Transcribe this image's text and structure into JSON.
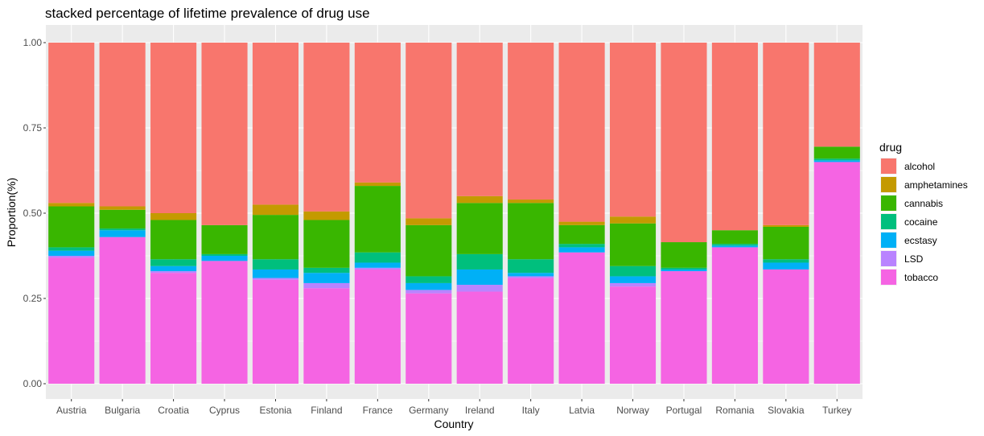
{
  "chart_data": {
    "type": "bar",
    "stacked": true,
    "title": "stacked percentage of lifetime prevalence of drug use",
    "xlabel": "Country",
    "ylabel": "Proportion(%)",
    "ylim": [
      0,
      1
    ],
    "yticks": [
      "0.00",
      "0.25",
      "0.50",
      "0.75",
      "1.00"
    ],
    "ytick_values": [
      0,
      0.25,
      0.5,
      0.75,
      1.0
    ],
    "grid": true,
    "legend_title": "drug",
    "legend_position": "right",
    "categories": [
      "Austria",
      "Bulgaria",
      "Croatia",
      "Cyprus",
      "Estonia",
      "Finland",
      "France",
      "Germany",
      "Ireland",
      "Italy",
      "Latvia",
      "Norway",
      "Portugal",
      "Romania",
      "Slovakia",
      "Turkey"
    ],
    "series": [
      {
        "name": "tobacco",
        "color": "#F564E3",
        "values": [
          0.37,
          0.43,
          0.325,
          0.36,
          0.305,
          0.28,
          0.335,
          0.265,
          0.27,
          0.31,
          0.385,
          0.285,
          0.33,
          0.4,
          0.335,
          0.65
        ]
      },
      {
        "name": "LSD",
        "color": "#B983FF",
        "values": [
          0.005,
          0.0,
          0.005,
          0.0,
          0.005,
          0.015,
          0.005,
          0.01,
          0.02,
          0.005,
          0.0,
          0.01,
          0.0,
          0.0,
          0.0,
          0.0
        ]
      },
      {
        "name": "ecstasy",
        "color": "#00B0F6",
        "values": [
          0.015,
          0.02,
          0.015,
          0.015,
          0.025,
          0.03,
          0.015,
          0.02,
          0.045,
          0.01,
          0.015,
          0.02,
          0.005,
          0.005,
          0.02,
          0.005
        ]
      },
      {
        "name": "cocaine",
        "color": "#00BF7D",
        "values": [
          0.01,
          0.005,
          0.02,
          0.005,
          0.03,
          0.015,
          0.03,
          0.02,
          0.045,
          0.04,
          0.01,
          0.03,
          0.005,
          0.005,
          0.01,
          0.005
        ]
      },
      {
        "name": "cannabis",
        "color": "#39B600",
        "values": [
          0.12,
          0.055,
          0.115,
          0.085,
          0.13,
          0.14,
          0.195,
          0.15,
          0.15,
          0.165,
          0.055,
          0.125,
          0.075,
          0.04,
          0.095,
          0.035
        ]
      },
      {
        "name": "amphetamines",
        "color": "#C49A00",
        "values": [
          0.01,
          0.01,
          0.02,
          0.0,
          0.03,
          0.025,
          0.01,
          0.02,
          0.02,
          0.01,
          0.01,
          0.02,
          0.0,
          0.0,
          0.005,
          0.0
        ]
      },
      {
        "name": "alcohol",
        "color": "#F8766D",
        "values": [
          0.47,
          0.48,
          0.5,
          0.535,
          0.475,
          0.495,
          0.41,
          0.515,
          0.45,
          0.46,
          0.525,
          0.51,
          0.585,
          0.55,
          0.535,
          0.305
        ]
      }
    ],
    "legend_order": [
      "alcohol",
      "amphetamines",
      "cannabis",
      "cocaine",
      "ecstasy",
      "LSD",
      "tobacco"
    ]
  }
}
